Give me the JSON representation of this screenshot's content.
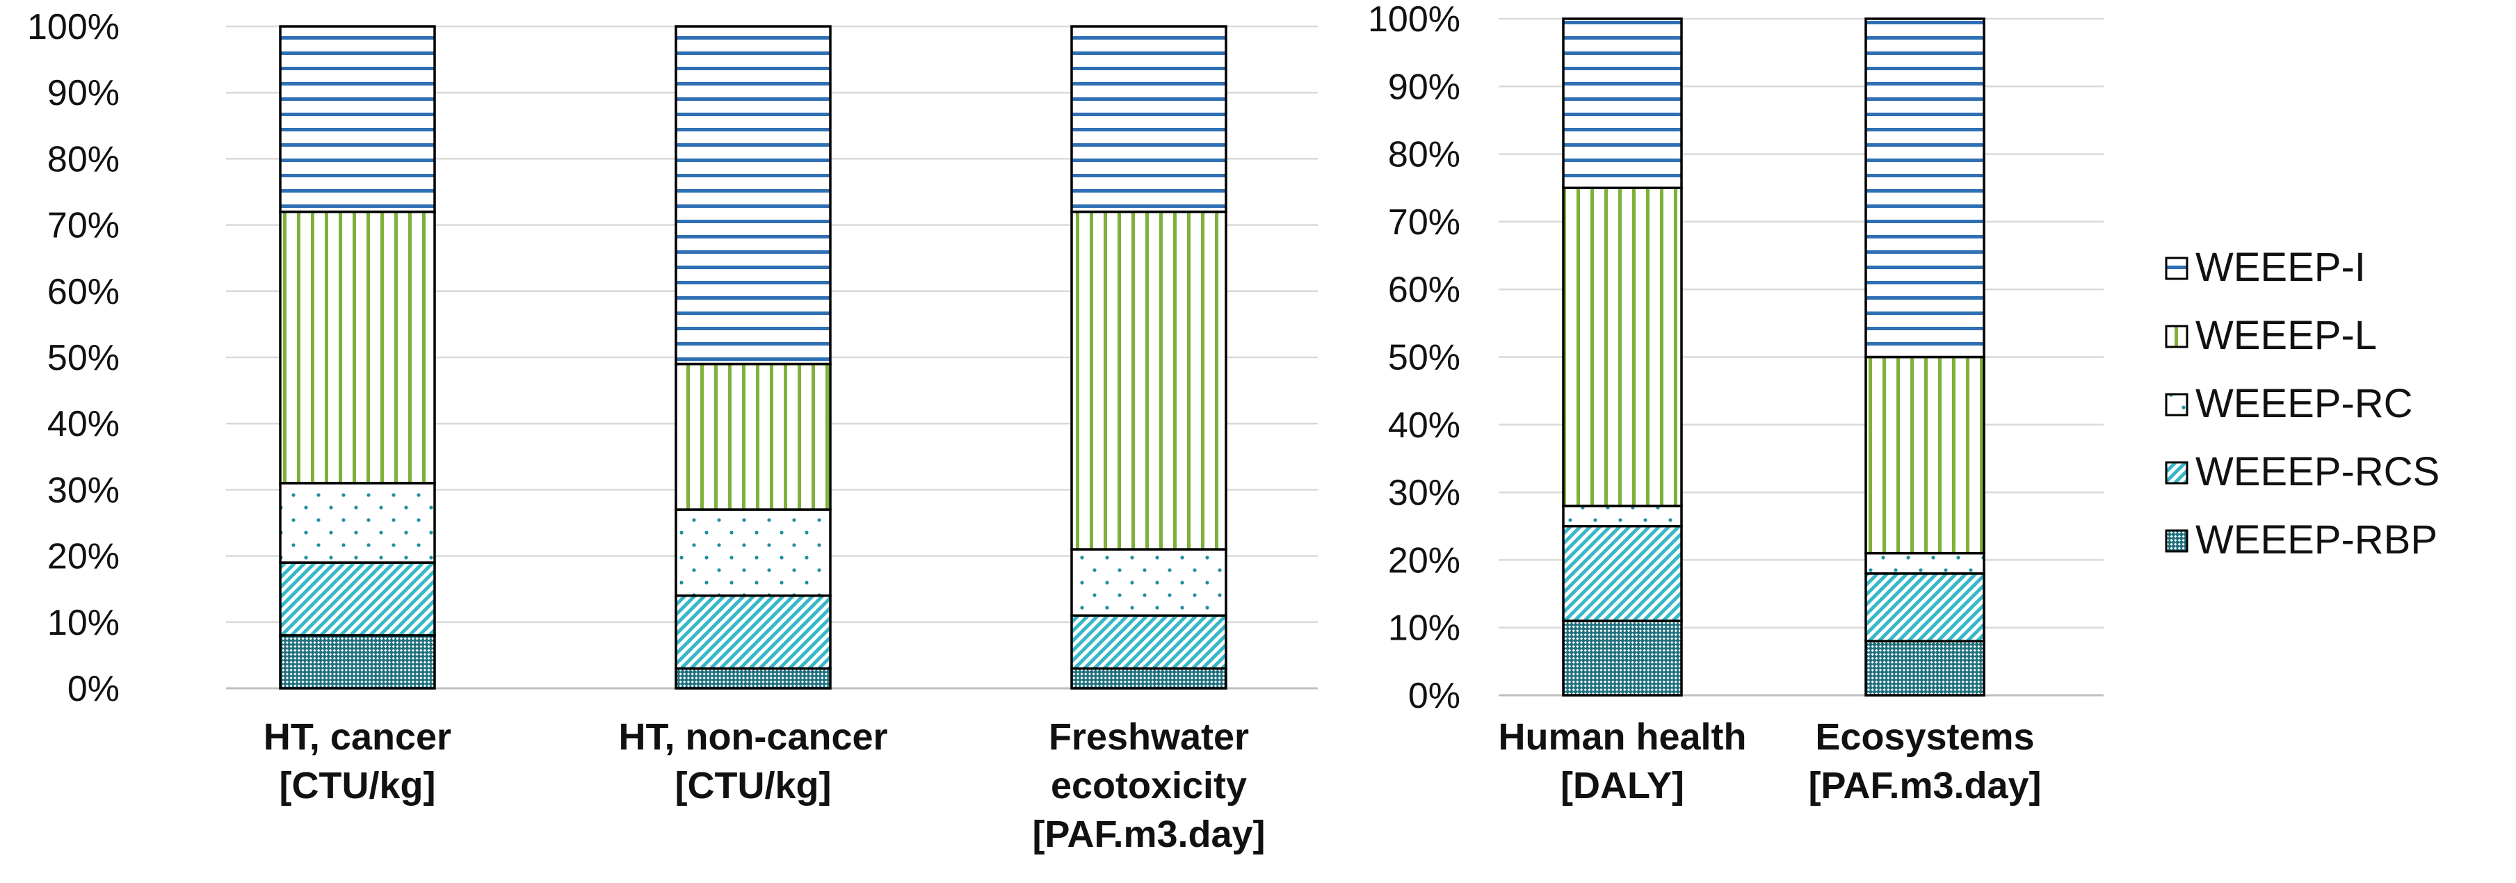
{
  "colors": {
    "blue": "#2f6fb3",
    "green": "#7fb13a",
    "teal": "#1f8fa0",
    "cyan": "#37b8c9",
    "grid": "#d9d9d9",
    "axis": "#bfbfbf"
  },
  "chart_data": [
    {
      "type": "bar",
      "stacked": "100%",
      "categories": [
        "HT, cancer\n[CTU/kg]",
        "HT, non-cancer\n[CTU/kg]",
        "Freshwater\necotoxicity\n[PAF.m3.day]"
      ],
      "series": [
        {
          "name": "WEEEP-RBP",
          "values": [
            8,
            3,
            3
          ]
        },
        {
          "name": "WEEEP-RCS",
          "values": [
            11,
            11,
            8
          ]
        },
        {
          "name": "WEEEP-RC",
          "values": [
            12,
            13,
            10
          ]
        },
        {
          "name": "WEEEP-L",
          "values": [
            41,
            22,
            51
          ]
        },
        {
          "name": "WEEEP-I",
          "values": [
            28,
            51,
            28
          ]
        }
      ],
      "ylim": [
        0,
        100
      ],
      "yticks": [
        "0%",
        "10%",
        "20%",
        "30%",
        "40%",
        "50%",
        "60%",
        "70%",
        "80%",
        "90%",
        "100%"
      ],
      "xlabel": "",
      "ylabel": ""
    },
    {
      "type": "bar",
      "stacked": "100%",
      "categories": [
        "Human health\n[DALY]",
        "Ecosystems\n[PAF.m3.day]"
      ],
      "series": [
        {
          "name": "WEEEP-RBP",
          "values": [
            11,
            8
          ]
        },
        {
          "name": "WEEEP-RCS",
          "values": [
            14,
            10
          ]
        },
        {
          "name": "WEEEP-RC",
          "values": [
            3,
            3
          ]
        },
        {
          "name": "WEEEP-L",
          "values": [
            47,
            29
          ]
        },
        {
          "name": "WEEEP-I",
          "values": [
            25,
            50
          ]
        }
      ],
      "ylim": [
        0,
        100
      ],
      "yticks": [
        "0%",
        "10%",
        "20%",
        "30%",
        "40%",
        "50%",
        "60%",
        "70%",
        "80%",
        "90%",
        "100%"
      ],
      "xlabel": "",
      "ylabel": ""
    }
  ],
  "legend": {
    "position": "right",
    "items": [
      "WEEEP-I",
      "WEEEP-L",
      "WEEEP-RC",
      "WEEEP-RCS",
      "WEEEP-RBP"
    ]
  }
}
